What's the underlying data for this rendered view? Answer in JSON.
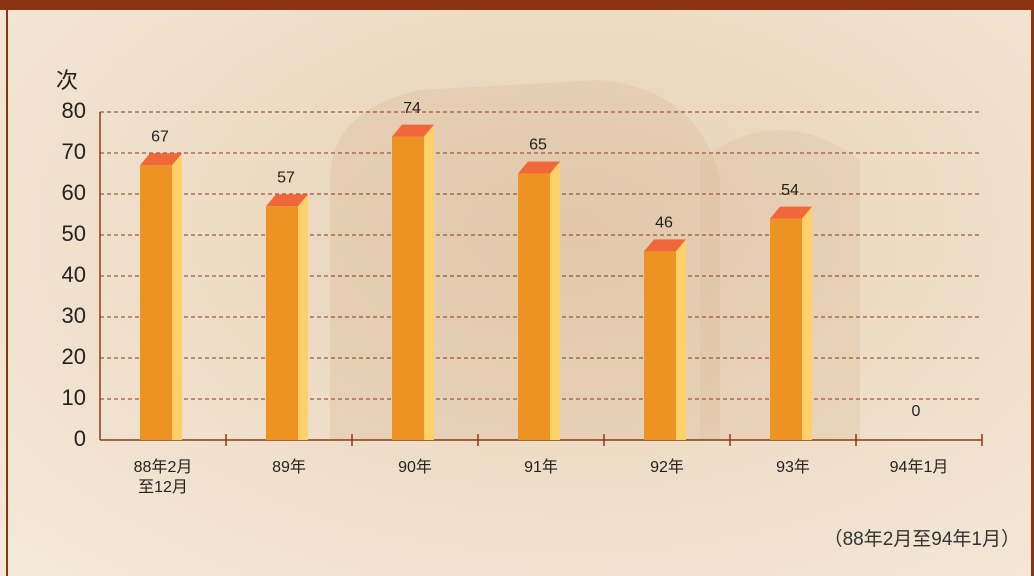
{
  "chart_data": {
    "type": "bar3d",
    "y_label": "次",
    "note": "（88年2月至94年1月）",
    "categories": [
      "88年2月\n至12月",
      "89年",
      "90年",
      "91年",
      "92年",
      "93年",
      "94年1月"
    ],
    "values": [
      67,
      57,
      74,
      65,
      46,
      54,
      0
    ],
    "colors": {
      "front": "#ec9323",
      "side": "#fcd06a",
      "top": "#f0683a"
    },
    "ylim": [
      0,
      80
    ],
    "yticks": [
      0,
      10,
      20,
      30,
      40,
      50,
      60,
      70,
      80
    ],
    "grid": true
  }
}
